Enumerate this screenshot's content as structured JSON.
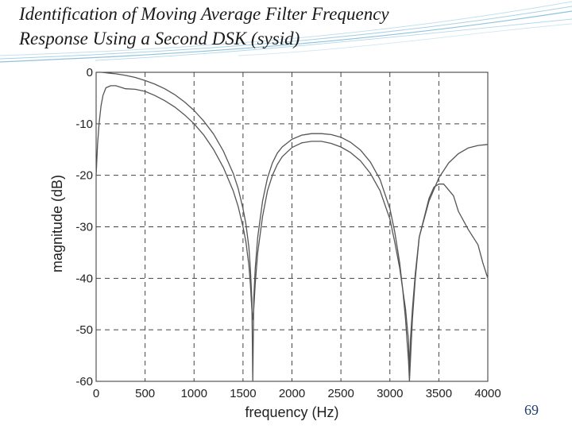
{
  "slide": {
    "title_line1": "Identification of Moving Average Filter Frequency",
    "title_line2": "Response Using a Second DSK (sysid)",
    "page_number": "69"
  },
  "colors": {
    "curve": "#555555",
    "grid": "#444444",
    "deco_lines": "#8fc3dd"
  },
  "chart_data": {
    "type": "line",
    "xlabel": "frequency (Hz)",
    "ylabel": "magnitude (dB)",
    "xlim": [
      0,
      4000
    ],
    "ylim": [
      -60,
      0
    ],
    "xticks": [
      0,
      500,
      1000,
      1500,
      2000,
      2500,
      3000,
      3500,
      4000
    ],
    "yticks": [
      0,
      -10,
      -20,
      -30,
      -40,
      -50,
      -60
    ],
    "xtick_labels": [
      "0",
      "500",
      "1000",
      "1500",
      "2000",
      "2500",
      "3000",
      "3500",
      "4000"
    ],
    "ytick_labels": [
      "0",
      "-10",
      "-20",
      "-30",
      "-40",
      "-50",
      "-60"
    ],
    "grid": true,
    "grid_style": "dashed",
    "series": [
      {
        "x": [
          0,
          50,
          100,
          150,
          200,
          300,
          400,
          500,
          600,
          700,
          800,
          900,
          1000,
          1100,
          1200,
          1300,
          1400,
          1450,
          1500,
          1530,
          1560,
          1575,
          1590,
          1600,
          1610,
          1625,
          1650,
          1700,
          1750,
          1800,
          1850,
          1900,
          2000,
          2100,
          2200,
          2300,
          2400,
          2500,
          2600,
          2700,
          2800,
          2900,
          3000,
          3050,
          3100,
          3130,
          3160,
          3175,
          3190,
          3200,
          3210,
          3230,
          3260,
          3300,
          3400,
          3500,
          3600,
          3700,
          3800,
          3900,
          4000
        ],
        "y": [
          0,
          0,
          -0.1,
          -0.2,
          -0.3,
          -0.6,
          -1.0,
          -1.6,
          -2.3,
          -3.2,
          -4.3,
          -5.7,
          -7.4,
          -9.5,
          -12.0,
          -15.3,
          -19.6,
          -22.5,
          -26.5,
          -29.5,
          -34,
          -38,
          -44,
          -60,
          -44,
          -38,
          -32,
          -25,
          -20.5,
          -17.6,
          -15.7,
          -14.5,
          -13.0,
          -12.2,
          -11.9,
          -11.9,
          -12.1,
          -12.6,
          -13.6,
          -15.1,
          -17.4,
          -20.8,
          -26.5,
          -31,
          -37,
          -42,
          -48,
          -52,
          -56,
          -60,
          -56,
          -48,
          -40,
          -32,
          -25,
          -20.5,
          -17.6,
          -15.8,
          -14.7,
          -14.2,
          -14.0
        ]
      },
      {
        "x": [
          0,
          15,
          30,
          50,
          70,
          100,
          150,
          200,
          300,
          400,
          500,
          600,
          700,
          800,
          900,
          1000,
          1100,
          1200,
          1300,
          1400,
          1450,
          1500,
          1530,
          1560,
          1575,
          1590,
          1600,
          1610,
          1625,
          1650,
          1700,
          1750,
          1800,
          1850,
          1900,
          2000,
          2100,
          2200,
          2300,
          2400,
          2500,
          2600,
          2700,
          2800,
          2900,
          3000,
          3050,
          3100,
          3130,
          3160,
          3175,
          3190,
          3200,
          3210,
          3230,
          3260,
          3300,
          3400,
          3450,
          3500,
          3550,
          3650,
          3700,
          3800,
          3900,
          3950,
          4000
        ],
        "y": [
          -20,
          -14,
          -10,
          -6.5,
          -4.5,
          -3.0,
          -2.6,
          -2.6,
          -3.2,
          -3.3,
          -3.7,
          -4.5,
          -5.5,
          -6.7,
          -8.2,
          -10.0,
          -12.2,
          -15.0,
          -18.5,
          -23.0,
          -26.0,
          -30.0,
          -33.0,
          -37.5,
          -41,
          -46,
          -48,
          -46,
          -41,
          -35,
          -28,
          -23,
          -20,
          -17.9,
          -16.4,
          -14.6,
          -13.7,
          -13.4,
          -13.4,
          -13.8,
          -14.5,
          -15.6,
          -17.2,
          -19.6,
          -23,
          -28.5,
          -33,
          -38,
          -42,
          -46,
          -49,
          -52,
          -58,
          -52,
          -46,
          -39,
          -32,
          -24.5,
          -22.3,
          -21.7,
          -21.7,
          -24,
          -27,
          -30.5,
          -33.5,
          -37,
          -40
        ]
      }
    ]
  }
}
